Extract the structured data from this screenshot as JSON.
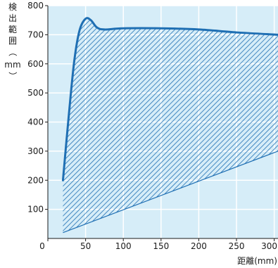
{
  "chart_data": {
    "type": "area",
    "ylabel_chars": [
      "検",
      "出",
      "範",
      "囲",
      "（",
      "mm",
      "）"
    ],
    "xlabel": "距離(mm)",
    "x_ticks": [
      "0",
      "50",
      "100",
      "150",
      "200",
      "250",
      "300"
    ],
    "y_ticks": [
      "100",
      "200",
      "300",
      "400",
      "500",
      "600",
      "700",
      "800"
    ],
    "xlim": [
      0,
      305
    ],
    "ylim": [
      0,
      800
    ],
    "grid": true,
    "series": [
      {
        "values": [
          {
            "x": 20,
            "y": 200
          },
          {
            "x": 28,
            "y": 430
          },
          {
            "x": 35,
            "y": 610
          },
          {
            "x": 42,
            "y": 715
          },
          {
            "x": 50,
            "y": 755
          },
          {
            "x": 57,
            "y": 750
          },
          {
            "x": 65,
            "y": 725
          },
          {
            "x": 75,
            "y": 718
          },
          {
            "x": 100,
            "y": 722
          },
          {
            "x": 150,
            "y": 722
          },
          {
            "x": 200,
            "y": 718
          },
          {
            "x": 250,
            "y": 708
          },
          {
            "x": 305,
            "y": 700
          }
        ]
      },
      {
        "values": [
          {
            "x": 20,
            "y": 20
          },
          {
            "x": 305,
            "y": 300
          }
        ]
      }
    ],
    "colors": {
      "background": "#d6edf8",
      "grid": "#ffffff",
      "curve": "#1f6fb3",
      "hatch": "#1f6fb3",
      "axis": "#1a1a1a"
    }
  }
}
